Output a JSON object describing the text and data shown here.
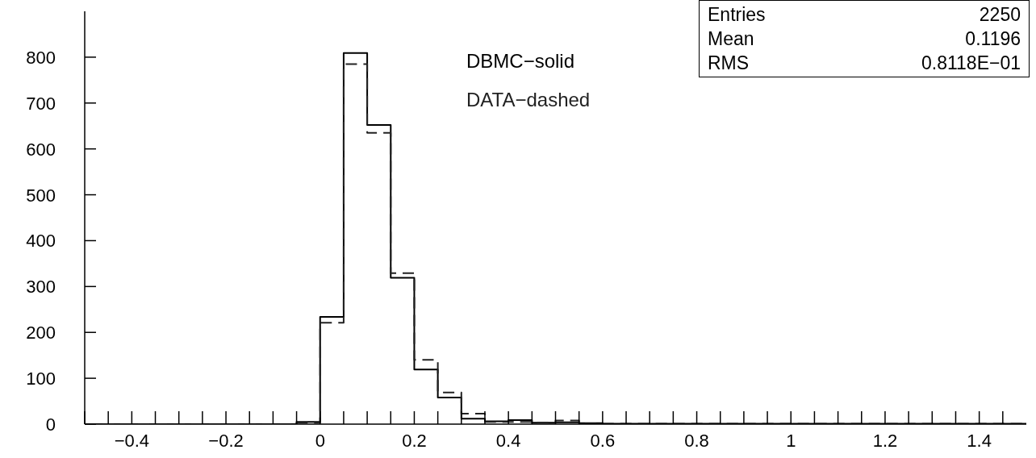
{
  "chart_data": {
    "type": "histogram",
    "bins": [
      -0.5,
      -0.45,
      -0.4,
      -0.35,
      -0.3,
      -0.25,
      -0.2,
      -0.15,
      -0.1,
      -0.05,
      0,
      0.05,
      0.1,
      0.15,
      0.2,
      0.25,
      0.3,
      0.35,
      0.4,
      0.45,
      0.5,
      0.55,
      0.6,
      0.65,
      0.7,
      0.75,
      0.8,
      0.85,
      0.9,
      0.95,
      1,
      1.05,
      1.1,
      1.15,
      1.2,
      1.25,
      1.3,
      1.35,
      1.4,
      1.45,
      1.5
    ],
    "series": [
      {
        "name": "DBMC−solid",
        "color": "#000000",
        "line_style": "solid",
        "values": [
          0,
          0,
          0,
          0,
          0,
          0,
          0,
          0,
          0,
          5,
          234,
          809,
          652,
          319,
          119,
          58,
          12,
          6,
          9,
          3,
          4,
          2,
          1,
          1,
          1,
          1,
          1,
          1,
          1,
          1,
          1,
          1,
          1,
          1,
          1,
          1,
          1,
          1,
          1,
          1
        ]
      },
      {
        "name": "DATA−dashed",
        "color": "#222222",
        "line_style": "dashed",
        "values": [
          0,
          0,
          0,
          0,
          0,
          0,
          0,
          0,
          0,
          3,
          221,
          785,
          635,
          329,
          140,
          69,
          23,
          5,
          5,
          3,
          8,
          1,
          1,
          1,
          1,
          1,
          1,
          1,
          1,
          1,
          1,
          1,
          1,
          1,
          1,
          1,
          1,
          1,
          1,
          1
        ]
      }
    ],
    "xlim": [
      -0.5,
      1.5
    ],
    "xticks": [
      {
        "value": -0.5,
        "label": null
      },
      {
        "value": -0.45,
        "label": null
      },
      {
        "value": -0.4,
        "label": "−0.4"
      },
      {
        "value": -0.35,
        "label": null
      },
      {
        "value": -0.3,
        "label": null
      },
      {
        "value": -0.25,
        "label": null
      },
      {
        "value": -0.2,
        "label": "−0.2"
      },
      {
        "value": -0.15,
        "label": null
      },
      {
        "value": -0.1,
        "label": null
      },
      {
        "value": -0.05,
        "label": null
      },
      0,
      {
        "value": 0.05,
        "label": null
      },
      {
        "value": 0.1,
        "label": null
      },
      {
        "value": 0.15,
        "label": null
      },
      0.2,
      {
        "value": 0.25,
        "label": null
      },
      {
        "value": 0.3,
        "label": null
      },
      {
        "value": 0.35,
        "label": null
      },
      0.4,
      {
        "value": 0.45,
        "label": null
      },
      {
        "value": 0.5,
        "label": null
      },
      {
        "value": 0.55,
        "label": null
      },
      0.6,
      {
        "value": 0.65,
        "label": null
      },
      {
        "value": 0.7,
        "label": null
      },
      {
        "value": 0.75,
        "label": null
      },
      0.8,
      {
        "value": 0.85,
        "label": null
      },
      {
        "value": 0.9,
        "label": null
      },
      {
        "value": 0.95,
        "label": null
      },
      1,
      {
        "value": 1.05,
        "label": null
      },
      {
        "value": 1.1,
        "label": null
      },
      {
        "value": 1.15,
        "label": null
      },
      1.2,
      {
        "value": 1.25,
        "label": null
      },
      {
        "value": 1.3,
        "label": null
      },
      {
        "value": 1.35,
        "label": null
      },
      1.4,
      {
        "value": 1.45,
        "label": null
      }
    ],
    "ylim": [
      0,
      900
    ],
    "yticks": [
      0,
      100,
      200,
      300,
      400,
      500,
      600,
      700,
      800
    ],
    "grid": false,
    "legend": "top",
    "annotations": [
      "Entries",
      "2250",
      "Mean",
      "0.1196",
      "RMS",
      "0.8118E−01"
    ]
  }
}
